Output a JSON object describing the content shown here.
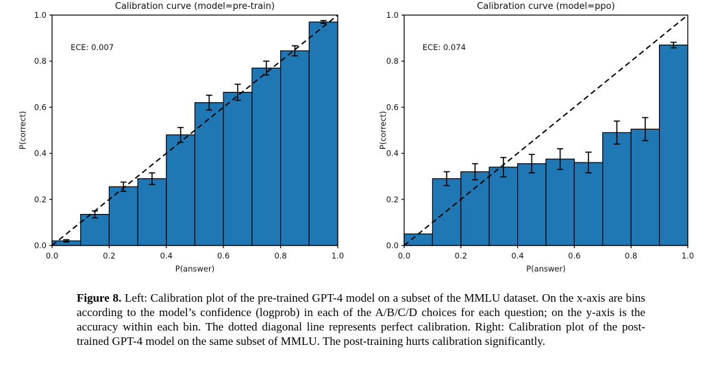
{
  "caption": {
    "label": "Figure 8.",
    "text": " Left: Calibration plot of the pre-trained GPT-4 model on a subset of the MMLU dataset. On the x-axis are bins according to the model’s confidence (logprob) in each of the A/B/C/D choices for each question; on the y-axis is the accuracy within each bin. The dotted diagonal line represents perfect calibration. Right: Calibration plot of the post-trained GPT-4 model on the same subset of MMLU. The post-training hurts calibration significantly."
  },
  "colors": {
    "bar_fill": "#1f77b4",
    "bar_edge": "#000000",
    "diagonal_line": "#000000",
    "error_bar": "#000000",
    "axis": "#000000",
    "background": "#ffffff"
  },
  "chart_data": [
    {
      "type": "bar",
      "title": "Calibration curve (model=pre-train)",
      "annotation": "ECE: 0.007",
      "xlabel": "P(answer)",
      "ylabel": "P(correct)",
      "xlim": [
        0.0,
        1.0
      ],
      "ylim": [
        0.0,
        1.0
      ],
      "xticks": [
        0.0,
        0.2,
        0.4,
        0.6,
        0.8,
        1.0
      ],
      "yticks": [
        0.0,
        0.2,
        0.4,
        0.6,
        0.8,
        1.0
      ],
      "grid": false,
      "legend": "none",
      "diagonal_reference_line": true,
      "bin_edges": [
        0.0,
        0.1,
        0.2,
        0.3,
        0.4,
        0.5,
        0.6,
        0.7,
        0.8,
        0.9,
        1.0
      ],
      "bin_centers": [
        0.05,
        0.15,
        0.25,
        0.35,
        0.45,
        0.55,
        0.65,
        0.75,
        0.85,
        0.95
      ],
      "values": [
        0.02,
        0.135,
        0.255,
        0.29,
        0.48,
        0.62,
        0.665,
        0.77,
        0.845,
        0.97
      ],
      "errors": [
        0.005,
        0.015,
        0.02,
        0.025,
        0.032,
        0.032,
        0.035,
        0.03,
        0.022,
        0.006
      ]
    },
    {
      "type": "bar",
      "title": "Calibration curve (model=ppo)",
      "annotation": "ECE: 0.074",
      "xlabel": "P(answer)",
      "ylabel": "P(correct)",
      "xlim": [
        0.0,
        1.0
      ],
      "ylim": [
        0.0,
        1.0
      ],
      "xticks": [
        0.0,
        0.2,
        0.4,
        0.6,
        0.8,
        1.0
      ],
      "yticks": [
        0.0,
        0.2,
        0.4,
        0.6,
        0.8,
        1.0
      ],
      "grid": false,
      "legend": "none",
      "diagonal_reference_line": true,
      "bin_edges": [
        0.0,
        0.1,
        0.2,
        0.3,
        0.4,
        0.5,
        0.6,
        0.7,
        0.8,
        0.9,
        1.0
      ],
      "bin_centers": [
        0.05,
        0.15,
        0.25,
        0.35,
        0.45,
        0.55,
        0.65,
        0.75,
        0.85,
        0.95
      ],
      "values": [
        0.05,
        0.29,
        0.32,
        0.34,
        0.355,
        0.375,
        0.36,
        0.49,
        0.505,
        0.87
      ],
      "errors": [
        0.0,
        0.03,
        0.035,
        0.042,
        0.04,
        0.045,
        0.045,
        0.05,
        0.05,
        0.012
      ]
    }
  ]
}
